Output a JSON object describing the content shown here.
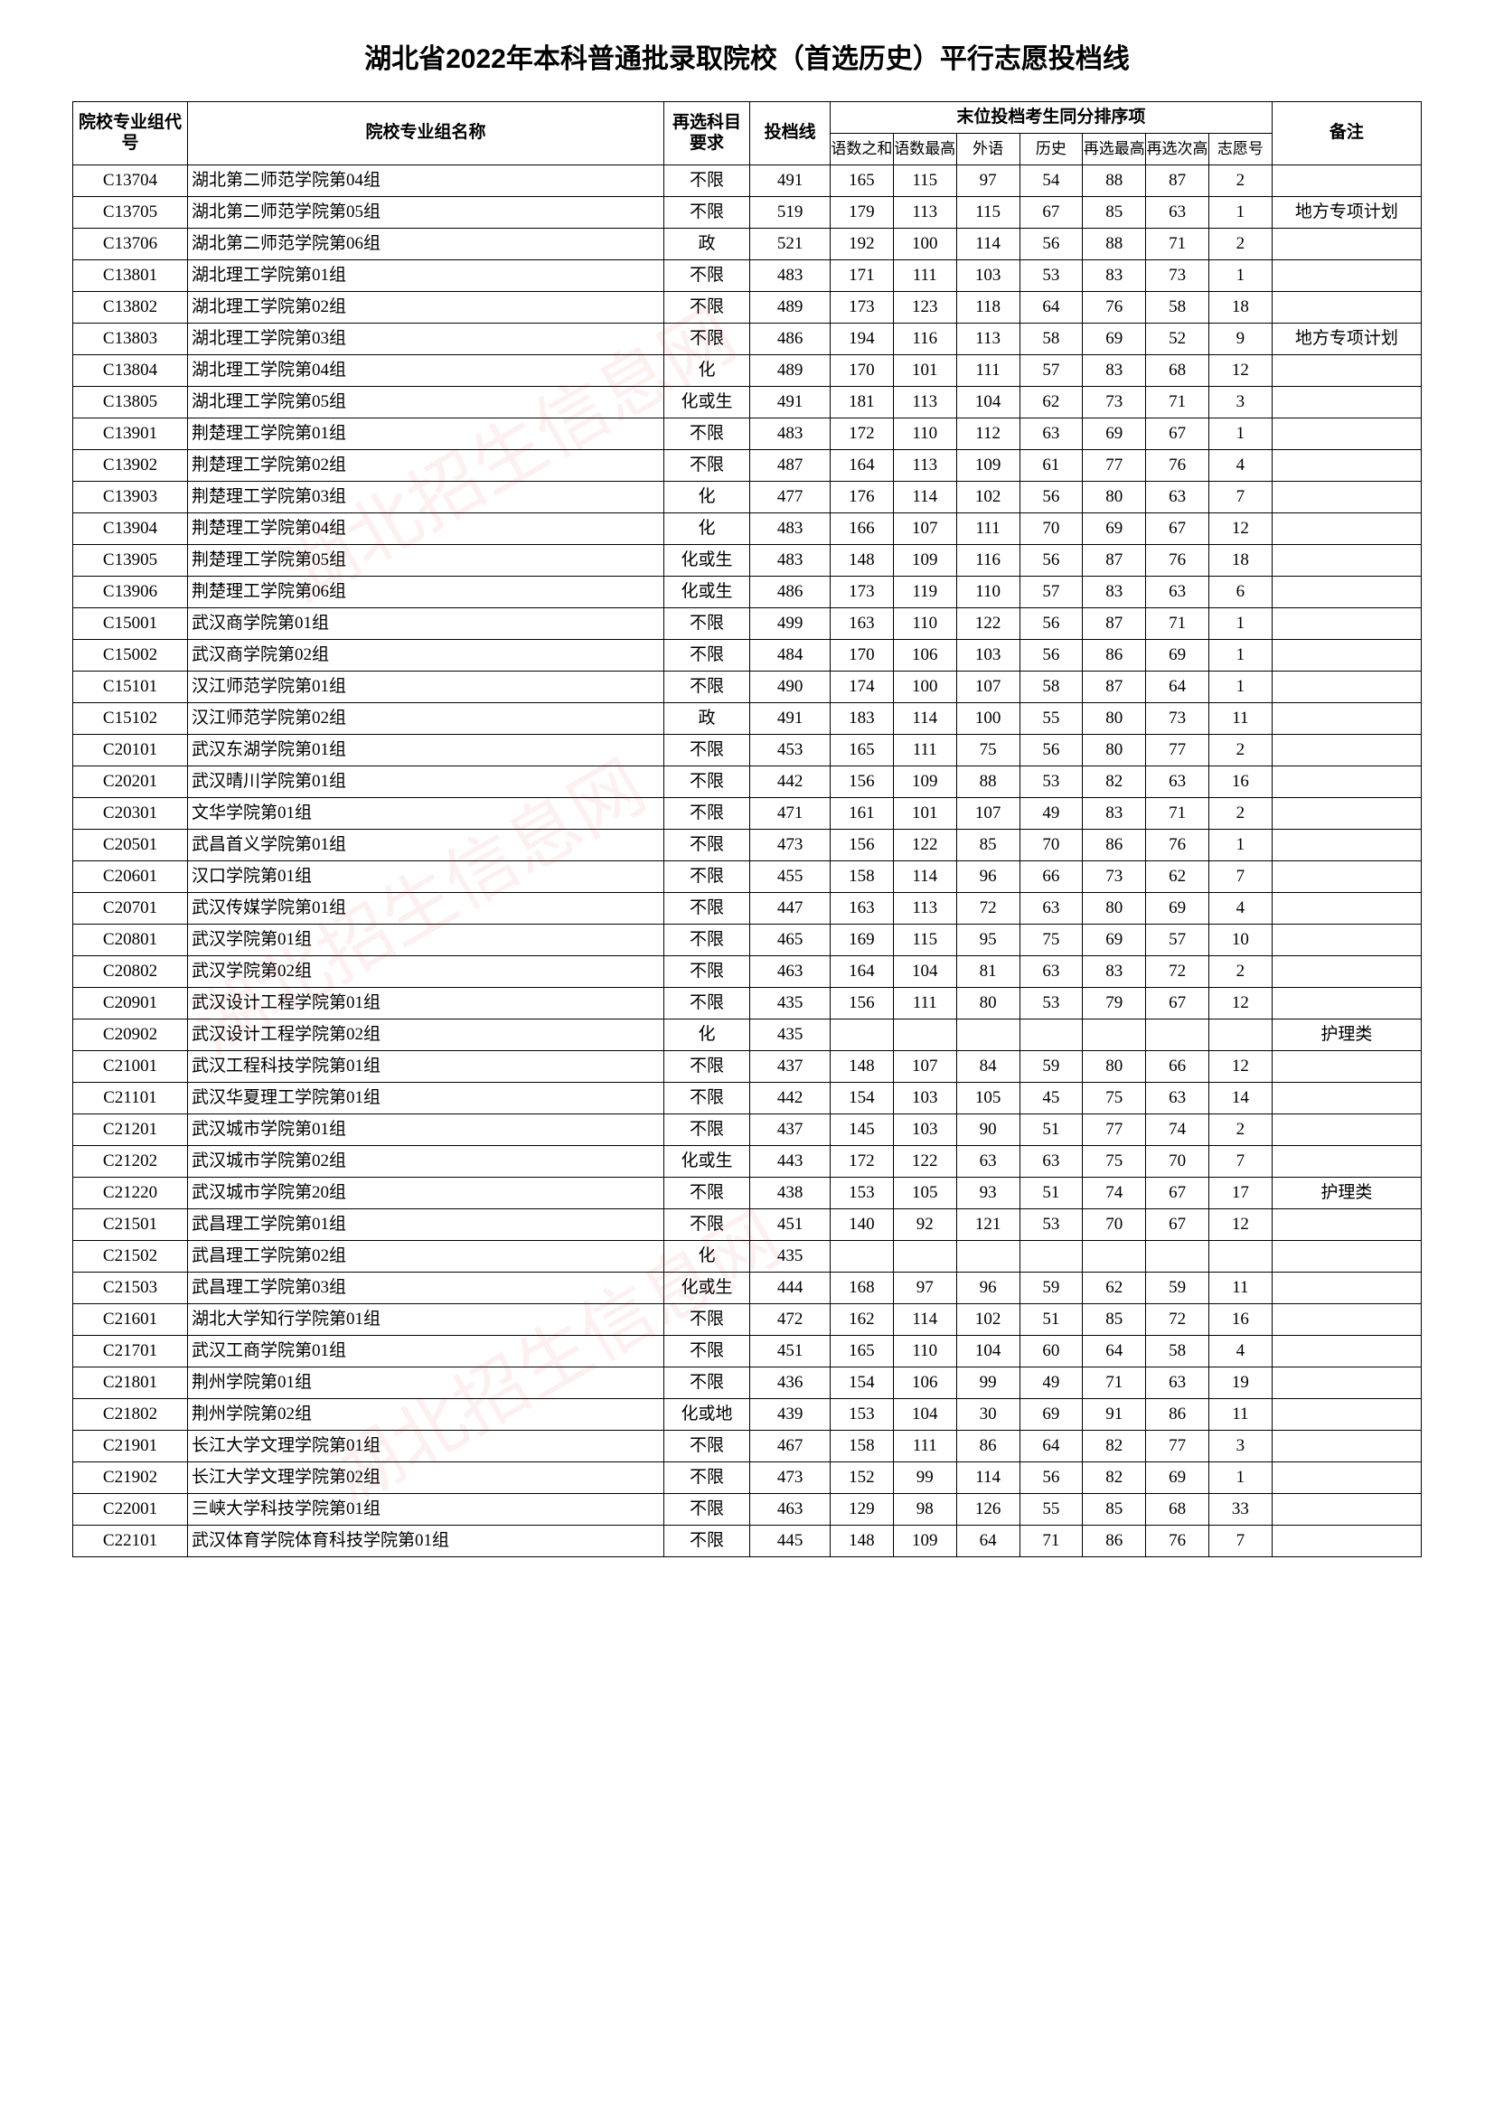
{
  "title": "湖北省2022年本科普通批录取院校（首选历史）平行志愿投档线",
  "header": {
    "code": "院校专业组代号",
    "name": "院校专业组名称",
    "sub_req": "再选科目要求",
    "line": "投档线",
    "tie_group": "末位投档考生同分排序项",
    "tie": {
      "sum": "语数之和",
      "max": "语数最高",
      "foreign": "外语",
      "history": "历史",
      "re_max": "再选最高",
      "re_second": "再选次高",
      "wish": "志愿号"
    },
    "remark": "备注"
  },
  "rows": [
    {
      "code": "C13704",
      "name": "湖北第二师范学院第04组",
      "req": "不限",
      "line": "491",
      "v": [
        "165",
        "115",
        "97",
        "54",
        "88",
        "87",
        "2"
      ],
      "remark": ""
    },
    {
      "code": "C13705",
      "name": "湖北第二师范学院第05组",
      "req": "不限",
      "line": "519",
      "v": [
        "179",
        "113",
        "115",
        "67",
        "85",
        "63",
        "1"
      ],
      "remark": "地方专项计划"
    },
    {
      "code": "C13706",
      "name": "湖北第二师范学院第06组",
      "req": "政",
      "line": "521",
      "v": [
        "192",
        "100",
        "114",
        "56",
        "88",
        "71",
        "2"
      ],
      "remark": ""
    },
    {
      "code": "C13801",
      "name": "湖北理工学院第01组",
      "req": "不限",
      "line": "483",
      "v": [
        "171",
        "111",
        "103",
        "53",
        "83",
        "73",
        "1"
      ],
      "remark": ""
    },
    {
      "code": "C13802",
      "name": "湖北理工学院第02组",
      "req": "不限",
      "line": "489",
      "v": [
        "173",
        "123",
        "118",
        "64",
        "76",
        "58",
        "18"
      ],
      "remark": ""
    },
    {
      "code": "C13803",
      "name": "湖北理工学院第03组",
      "req": "不限",
      "line": "486",
      "v": [
        "194",
        "116",
        "113",
        "58",
        "69",
        "52",
        "9"
      ],
      "remark": "地方专项计划"
    },
    {
      "code": "C13804",
      "name": "湖北理工学院第04组",
      "req": "化",
      "line": "489",
      "v": [
        "170",
        "101",
        "111",
        "57",
        "83",
        "68",
        "12"
      ],
      "remark": ""
    },
    {
      "code": "C13805",
      "name": "湖北理工学院第05组",
      "req": "化或生",
      "line": "491",
      "v": [
        "181",
        "113",
        "104",
        "62",
        "73",
        "71",
        "3"
      ],
      "remark": ""
    },
    {
      "code": "C13901",
      "name": "荆楚理工学院第01组",
      "req": "不限",
      "line": "483",
      "v": [
        "172",
        "110",
        "112",
        "63",
        "69",
        "67",
        "1"
      ],
      "remark": ""
    },
    {
      "code": "C13902",
      "name": "荆楚理工学院第02组",
      "req": "不限",
      "line": "487",
      "v": [
        "164",
        "113",
        "109",
        "61",
        "77",
        "76",
        "4"
      ],
      "remark": ""
    },
    {
      "code": "C13903",
      "name": "荆楚理工学院第03组",
      "req": "化",
      "line": "477",
      "v": [
        "176",
        "114",
        "102",
        "56",
        "80",
        "63",
        "7"
      ],
      "remark": ""
    },
    {
      "code": "C13904",
      "name": "荆楚理工学院第04组",
      "req": "化",
      "line": "483",
      "v": [
        "166",
        "107",
        "111",
        "70",
        "69",
        "67",
        "12"
      ],
      "remark": ""
    },
    {
      "code": "C13905",
      "name": "荆楚理工学院第05组",
      "req": "化或生",
      "line": "483",
      "v": [
        "148",
        "109",
        "116",
        "56",
        "87",
        "76",
        "18"
      ],
      "remark": ""
    },
    {
      "code": "C13906",
      "name": "荆楚理工学院第06组",
      "req": "化或生",
      "line": "486",
      "v": [
        "173",
        "119",
        "110",
        "57",
        "83",
        "63",
        "6"
      ],
      "remark": ""
    },
    {
      "code": "C15001",
      "name": "武汉商学院第01组",
      "req": "不限",
      "line": "499",
      "v": [
        "163",
        "110",
        "122",
        "56",
        "87",
        "71",
        "1"
      ],
      "remark": ""
    },
    {
      "code": "C15002",
      "name": "武汉商学院第02组",
      "req": "不限",
      "line": "484",
      "v": [
        "170",
        "106",
        "103",
        "56",
        "86",
        "69",
        "1"
      ],
      "remark": ""
    },
    {
      "code": "C15101",
      "name": "汉江师范学院第01组",
      "req": "不限",
      "line": "490",
      "v": [
        "174",
        "100",
        "107",
        "58",
        "87",
        "64",
        "1"
      ],
      "remark": ""
    },
    {
      "code": "C15102",
      "name": "汉江师范学院第02组",
      "req": "政",
      "line": "491",
      "v": [
        "183",
        "114",
        "100",
        "55",
        "80",
        "73",
        "11"
      ],
      "remark": ""
    },
    {
      "code": "C20101",
      "name": "武汉东湖学院第01组",
      "req": "不限",
      "line": "453",
      "v": [
        "165",
        "111",
        "75",
        "56",
        "80",
        "77",
        "2"
      ],
      "remark": ""
    },
    {
      "code": "C20201",
      "name": "武汉晴川学院第01组",
      "req": "不限",
      "line": "442",
      "v": [
        "156",
        "109",
        "88",
        "53",
        "82",
        "63",
        "16"
      ],
      "remark": ""
    },
    {
      "code": "C20301",
      "name": "文华学院第01组",
      "req": "不限",
      "line": "471",
      "v": [
        "161",
        "101",
        "107",
        "49",
        "83",
        "71",
        "2"
      ],
      "remark": ""
    },
    {
      "code": "C20501",
      "name": "武昌首义学院第01组",
      "req": "不限",
      "line": "473",
      "v": [
        "156",
        "122",
        "85",
        "70",
        "86",
        "76",
        "1"
      ],
      "remark": ""
    },
    {
      "code": "C20601",
      "name": "汉口学院第01组",
      "req": "不限",
      "line": "455",
      "v": [
        "158",
        "114",
        "96",
        "66",
        "73",
        "62",
        "7"
      ],
      "remark": ""
    },
    {
      "code": "C20701",
      "name": "武汉传媒学院第01组",
      "req": "不限",
      "line": "447",
      "v": [
        "163",
        "113",
        "72",
        "63",
        "80",
        "69",
        "4"
      ],
      "remark": ""
    },
    {
      "code": "C20801",
      "name": "武汉学院第01组",
      "req": "不限",
      "line": "465",
      "v": [
        "169",
        "115",
        "95",
        "75",
        "69",
        "57",
        "10"
      ],
      "remark": ""
    },
    {
      "code": "C20802",
      "name": "武汉学院第02组",
      "req": "不限",
      "line": "463",
      "v": [
        "164",
        "104",
        "81",
        "63",
        "83",
        "72",
        "2"
      ],
      "remark": ""
    },
    {
      "code": "C20901",
      "name": "武汉设计工程学院第01组",
      "req": "不限",
      "line": "435",
      "v": [
        "156",
        "111",
        "80",
        "53",
        "79",
        "67",
        "12"
      ],
      "remark": ""
    },
    {
      "code": "C20902",
      "name": "武汉设计工程学院第02组",
      "req": "化",
      "line": "435",
      "v": [
        "",
        "",
        "",
        "",
        "",
        "",
        ""
      ],
      "remark": "护理类"
    },
    {
      "code": "C21001",
      "name": "武汉工程科技学院第01组",
      "req": "不限",
      "line": "437",
      "v": [
        "148",
        "107",
        "84",
        "59",
        "80",
        "66",
        "12"
      ],
      "remark": ""
    },
    {
      "code": "C21101",
      "name": "武汉华夏理工学院第01组",
      "req": "不限",
      "line": "442",
      "v": [
        "154",
        "103",
        "105",
        "45",
        "75",
        "63",
        "14"
      ],
      "remark": ""
    },
    {
      "code": "C21201",
      "name": "武汉城市学院第01组",
      "req": "不限",
      "line": "437",
      "v": [
        "145",
        "103",
        "90",
        "51",
        "77",
        "74",
        "2"
      ],
      "remark": ""
    },
    {
      "code": "C21202",
      "name": "武汉城市学院第02组",
      "req": "化或生",
      "line": "443",
      "v": [
        "172",
        "122",
        "63",
        "63",
        "75",
        "70",
        "7"
      ],
      "remark": ""
    },
    {
      "code": "C21220",
      "name": "武汉城市学院第20组",
      "req": "不限",
      "line": "438",
      "v": [
        "153",
        "105",
        "93",
        "51",
        "74",
        "67",
        "17"
      ],
      "remark": "护理类"
    },
    {
      "code": "C21501",
      "name": "武昌理工学院第01组",
      "req": "不限",
      "line": "451",
      "v": [
        "140",
        "92",
        "121",
        "53",
        "70",
        "67",
        "12"
      ],
      "remark": ""
    },
    {
      "code": "C21502",
      "name": "武昌理工学院第02组",
      "req": "化",
      "line": "435",
      "v": [
        "",
        "",
        "",
        "",
        "",
        "",
        ""
      ],
      "remark": ""
    },
    {
      "code": "C21503",
      "name": "武昌理工学院第03组",
      "req": "化或生",
      "line": "444",
      "v": [
        "168",
        "97",
        "96",
        "59",
        "62",
        "59",
        "11"
      ],
      "remark": ""
    },
    {
      "code": "C21601",
      "name": "湖北大学知行学院第01组",
      "req": "不限",
      "line": "472",
      "v": [
        "162",
        "114",
        "102",
        "51",
        "85",
        "72",
        "16"
      ],
      "remark": ""
    },
    {
      "code": "C21701",
      "name": "武汉工商学院第01组",
      "req": "不限",
      "line": "451",
      "v": [
        "165",
        "110",
        "104",
        "60",
        "64",
        "58",
        "4"
      ],
      "remark": ""
    },
    {
      "code": "C21801",
      "name": "荆州学院第01组",
      "req": "不限",
      "line": "436",
      "v": [
        "154",
        "106",
        "99",
        "49",
        "71",
        "63",
        "19"
      ],
      "remark": ""
    },
    {
      "code": "C21802",
      "name": "荆州学院第02组",
      "req": "化或地",
      "line": "439",
      "v": [
        "153",
        "104",
        "30",
        "69",
        "91",
        "86",
        "11"
      ],
      "remark": ""
    },
    {
      "code": "C21901",
      "name": "长江大学文理学院第01组",
      "req": "不限",
      "line": "467",
      "v": [
        "158",
        "111",
        "86",
        "64",
        "82",
        "77",
        "3"
      ],
      "remark": ""
    },
    {
      "code": "C21902",
      "name": "长江大学文理学院第02组",
      "req": "不限",
      "line": "473",
      "v": [
        "152",
        "99",
        "114",
        "56",
        "82",
        "69",
        "1"
      ],
      "remark": ""
    },
    {
      "code": "C22001",
      "name": "三峡大学科技学院第01组",
      "req": "不限",
      "line": "463",
      "v": [
        "129",
        "98",
        "126",
        "55",
        "85",
        "68",
        "33"
      ],
      "remark": ""
    },
    {
      "code": "C22101",
      "name": "武汉体育学院体育科技学院第01组",
      "req": "不限",
      "line": "445",
      "v": [
        "148",
        "109",
        "64",
        "71",
        "86",
        "76",
        "7"
      ],
      "remark": ""
    }
  ]
}
